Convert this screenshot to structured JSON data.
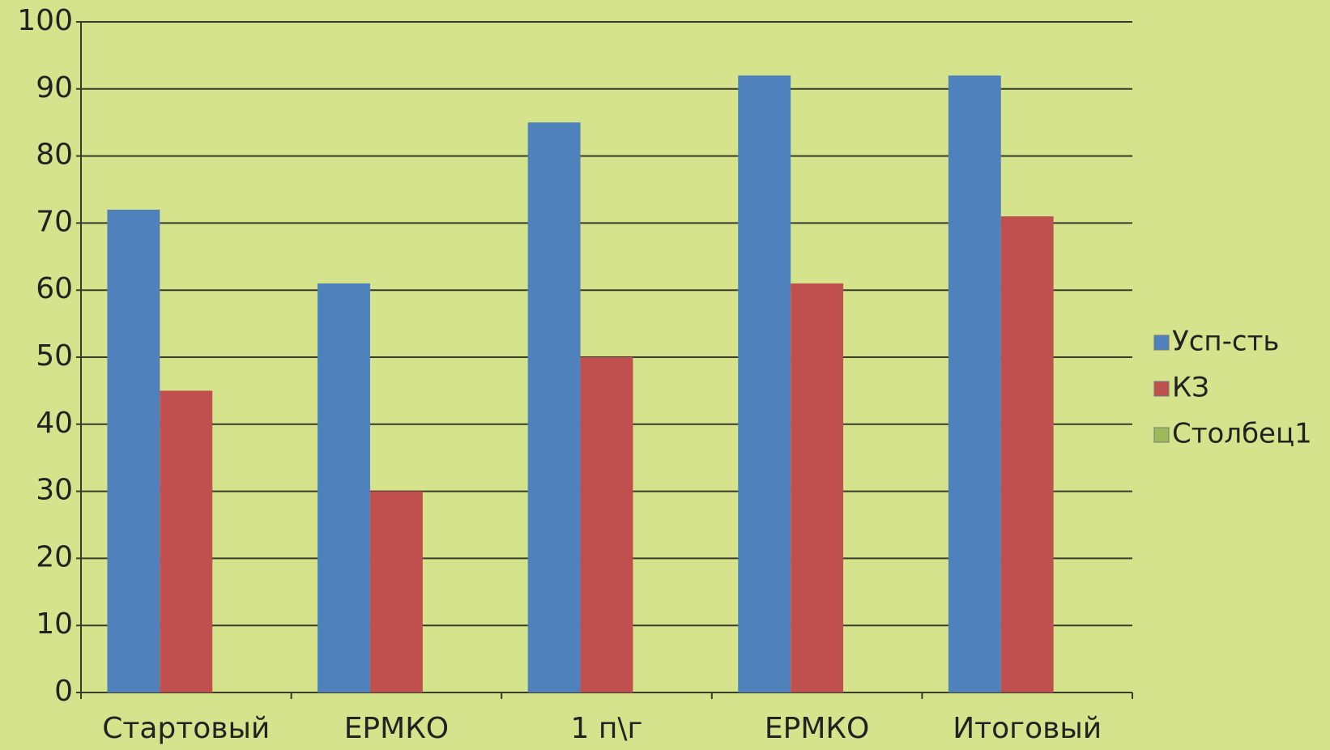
{
  "chart_data": {
    "type": "bar",
    "categories": [
      "Стартовый",
      "ЕРМКО",
      "1 п\\г",
      "ЕРМКО",
      "Итоговый"
    ],
    "series": [
      {
        "name": "Усп-сть",
        "color": "#4f81bd",
        "values": [
          72,
          61,
          85,
          92,
          92
        ]
      },
      {
        "name": "КЗ",
        "color": "#c0504d",
        "values": [
          45,
          30,
          50,
          61,
          71
        ]
      },
      {
        "name": "Столбец1",
        "color": "#9bbb59",
        "values": [
          null,
          null,
          null,
          null,
          null
        ]
      }
    ],
    "ylim": [
      0,
      100
    ],
    "yticks": [
      0,
      10,
      20,
      30,
      40,
      50,
      60,
      70,
      80,
      90,
      100
    ],
    "grid": true,
    "legend": "right"
  }
}
